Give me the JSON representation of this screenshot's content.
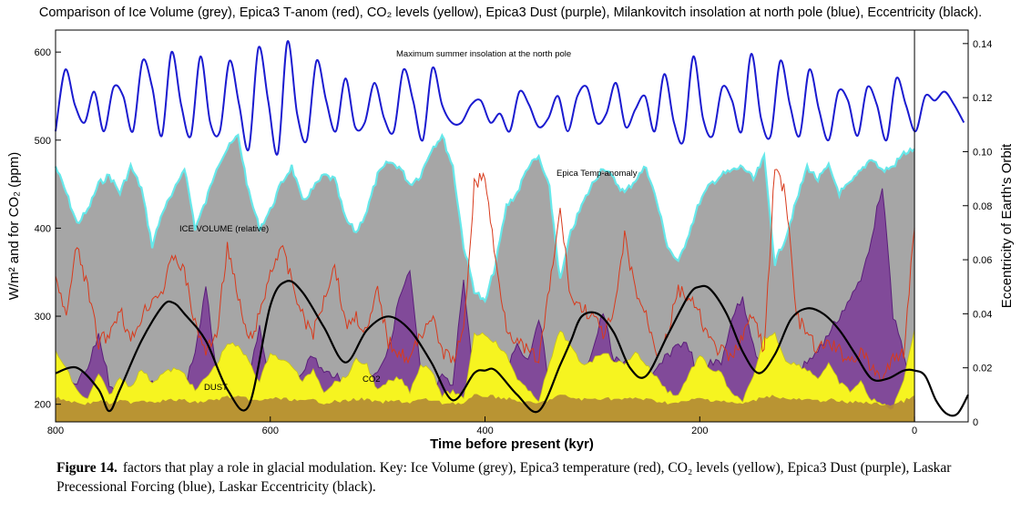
{
  "chart_data": {
    "type": "area",
    "title": "Comparison of Ice Volume (grey), Epica3 T-anom (red), CO₂ levels (yellow), Epica3 Dust (purple), Milankovitch insolation at north pole (blue), Eccentricity (black).",
    "xlabel": "Time before present (kyr)",
    "ylabel_left": "W/m² and for CO₂ (ppm)",
    "ylabel_right": "Eccentricity  of Earth's Orbit",
    "x_ticks": [
      800,
      600,
      400,
      200,
      0
    ],
    "y_left_ticks": [
      200,
      300,
      400,
      500,
      600
    ],
    "y_right_ticks": [
      "0",
      "0.02",
      "0.04",
      "0.06",
      "0.08",
      "0.10",
      "0.12",
      "0.14"
    ],
    "xlim": [
      800,
      -50
    ],
    "ylim_left": [
      180,
      625
    ],
    "ylim_right": [
      0,
      0.145
    ],
    "annotations": {
      "insolation": "Maximum summer insolation at the north pole",
      "temp": "Epica Temp-anomaly",
      "ice": "ICE VOLUME (relative)",
      "dust": "DUST",
      "co2": "CO2"
    },
    "colors": {
      "ice": "#a6a6a6",
      "ice_edge": "#66e8ea",
      "temp": "#d83a1c",
      "co2": "#f6f420",
      "dust": "#7a3a96",
      "dust_line": "#5a1f7a",
      "insolation": "#1b1bd0",
      "eccentricity": "#000000",
      "base": "#b38a35"
    },
    "series": [
      {
        "name": "Maximum summer insolation at the north pole",
        "axis": "left",
        "x": [
          800,
          791,
          782,
          773,
          764,
          755,
          746,
          737,
          728,
          719,
          710,
          701,
          692,
          683,
          674,
          665,
          656,
          647,
          638,
          629,
          620,
          611,
          602,
          593,
          584,
          575,
          566,
          557,
          548,
          539,
          530,
          521,
          512,
          503,
          494,
          485,
          476,
          467,
          458,
          449,
          440,
          431,
          422,
          413,
          404,
          395,
          386,
          377,
          368,
          359,
          350,
          341,
          332,
          323,
          314,
          305,
          296,
          287,
          278,
          269,
          260,
          251,
          242,
          233,
          224,
          215,
          206,
          197,
          188,
          179,
          170,
          161,
          152,
          143,
          134,
          125,
          116,
          107,
          98,
          89,
          80,
          71,
          62,
          53,
          44,
          35,
          26,
          17,
          8,
          -1,
          -10,
          -19,
          -28,
          -37,
          -46
        ],
        "y": [
          510,
          580,
          540,
          520,
          555,
          510,
          560,
          550,
          510,
          590,
          560,
          505,
          600,
          540,
          505,
          595,
          520,
          510,
          590,
          540,
          490,
          605,
          545,
          485,
          612,
          530,
          500,
          590,
          545,
          510,
          570,
          515,
          520,
          565,
          525,
          510,
          580,
          545,
          500,
          582,
          540,
          520,
          520,
          540,
          545,
          520,
          530,
          510,
          555,
          540,
          515,
          525,
          550,
          510,
          550,
          560,
          520,
          530,
          565,
          515,
          535,
          550,
          510,
          575,
          520,
          500,
          595,
          525,
          505,
          560,
          545,
          510,
          598,
          525,
          505,
          590,
          540,
          505,
          580,
          535,
          500,
          555,
          545,
          505,
          560,
          540,
          500,
          570,
          540,
          510,
          550,
          545,
          555,
          540,
          520
        ]
      },
      {
        "name": "Ice Volume",
        "axis": "left",
        "x": [
          800,
          790,
          780,
          770,
          760,
          750,
          740,
          730,
          720,
          710,
          700,
          690,
          680,
          670,
          660,
          650,
          640,
          630,
          620,
          610,
          600,
          590,
          580,
          570,
          560,
          550,
          540,
          530,
          520,
          510,
          500,
          490,
          480,
          470,
          460,
          450,
          440,
          430,
          420,
          410,
          400,
          390,
          380,
          370,
          360,
          350,
          340,
          330,
          320,
          310,
          300,
          290,
          280,
          270,
          260,
          250,
          240,
          230,
          220,
          210,
          200,
          190,
          180,
          170,
          160,
          150,
          140,
          130,
          120,
          110,
          100,
          90,
          80,
          70,
          60,
          50,
          40,
          30,
          20,
          10,
          0
        ],
        "y": [
          470,
          440,
          405,
          420,
          450,
          460,
          440,
          470,
          445,
          380,
          420,
          440,
          470,
          400,
          430,
          470,
          490,
          505,
          440,
          400,
          420,
          450,
          470,
          430,
          445,
          460,
          455,
          410,
          395,
          420,
          460,
          475,
          470,
          450,
          460,
          490,
          505,
          470,
          380,
          330,
          315,
          360,
          425,
          440,
          470,
          480,
          445,
          340,
          395,
          425,
          450,
          470,
          455,
          440,
          455,
          470,
          430,
          380,
          360,
          395,
          430,
          450,
          460,
          465,
          470,
          455,
          480,
          360,
          390,
          430,
          470,
          455,
          470,
          440,
          450,
          465,
          480,
          465,
          470,
          485,
          490
        ]
      },
      {
        "name": "Epica3 T-anom",
        "axis": "left",
        "x": [
          800,
          790,
          780,
          770,
          760,
          750,
          740,
          730,
          720,
          710,
          700,
          690,
          680,
          670,
          660,
          650,
          640,
          630,
          620,
          610,
          600,
          590,
          580,
          570,
          560,
          550,
          540,
          530,
          520,
          510,
          500,
          490,
          480,
          470,
          460,
          450,
          440,
          430,
          420,
          410,
          400,
          390,
          380,
          370,
          360,
          350,
          340,
          330,
          320,
          310,
          300,
          290,
          280,
          270,
          260,
          250,
          240,
          230,
          220,
          210,
          200,
          190,
          180,
          170,
          160,
          150,
          140,
          130,
          120,
          110,
          100,
          90,
          80,
          70,
          60,
          50,
          40,
          30,
          20,
          10,
          0
        ],
        "y": [
          340,
          300,
          380,
          330,
          270,
          280,
          310,
          270,
          300,
          320,
          330,
          370,
          350,
          290,
          260,
          280,
          380,
          320,
          270,
          300,
          350,
          380,
          340,
          300,
          280,
          320,
          360,
          290,
          300,
          280,
          330,
          270,
          260,
          250,
          280,
          300,
          260,
          250,
          280,
          450,
          460,
          360,
          290,
          270,
          260,
          250,
          330,
          420,
          320,
          310,
          300,
          280,
          300,
          390,
          330,
          300,
          260,
          280,
          330,
          320,
          300,
          270,
          260,
          250,
          280,
          300,
          260,
          470,
          440,
          300,
          280,
          260,
          270,
          260,
          250,
          260,
          240,
          230,
          250,
          260,
          400
        ]
      },
      {
        "name": "CO2 levels",
        "axis": "left",
        "x": [
          800,
          790,
          780,
          770,
          760,
          750,
          740,
          730,
          720,
          710,
          700,
          690,
          680,
          670,
          660,
          650,
          640,
          630,
          620,
          610,
          600,
          590,
          580,
          570,
          560,
          550,
          540,
          530,
          520,
          510,
          500,
          490,
          480,
          470,
          460,
          450,
          440,
          430,
          420,
          410,
          400,
          390,
          380,
          370,
          360,
          350,
          340,
          330,
          320,
          310,
          300,
          290,
          280,
          270,
          260,
          250,
          240,
          230,
          220,
          210,
          200,
          190,
          180,
          170,
          160,
          150,
          140,
          130,
          120,
          110,
          100,
          90,
          80,
          70,
          60,
          50,
          40,
          30,
          20,
          10,
          0
        ],
        "y": [
          260,
          240,
          215,
          205,
          235,
          210,
          230,
          220,
          240,
          225,
          235,
          240,
          235,
          215,
          230,
          245,
          270,
          265,
          250,
          225,
          260,
          250,
          245,
          225,
          240,
          215,
          225,
          230,
          250,
          245,
          215,
          225,
          230,
          215,
          245,
          240,
          210,
          215,
          205,
          280,
          280,
          270,
          255,
          230,
          215,
          205,
          245,
          285,
          265,
          245,
          250,
          260,
          250,
          245,
          260,
          245,
          230,
          215,
          210,
          235,
          255,
          240,
          235,
          210,
          205,
          230,
          275,
          280,
          250,
          245,
          240,
          230,
          245,
          225,
          215,
          225,
          205,
          200,
          195,
          230,
          285
        ]
      },
      {
        "name": "Epica3 Dust",
        "axis": "left",
        "x": [
          800,
          790,
          780,
          770,
          760,
          750,
          740,
          730,
          720,
          710,
          700,
          690,
          680,
          670,
          660,
          650,
          640,
          630,
          620,
          610,
          600,
          590,
          580,
          570,
          560,
          550,
          540,
          530,
          520,
          510,
          500,
          490,
          480,
          470,
          460,
          450,
          440,
          430,
          420,
          410,
          400,
          390,
          380,
          370,
          360,
          350,
          340,
          330,
          320,
          310,
          300,
          290,
          280,
          270,
          260,
          250,
          240,
          230,
          220,
          210,
          200,
          190,
          180,
          170,
          160,
          150,
          140,
          130,
          120,
          110,
          100,
          90,
          80,
          70,
          60,
          50,
          40,
          30,
          20,
          10,
          0
        ],
        "y": [
          210,
          215,
          225,
          240,
          280,
          225,
          215,
          215,
          230,
          225,
          220,
          215,
          220,
          260,
          330,
          240,
          220,
          225,
          230,
          285,
          225,
          215,
          220,
          240,
          255,
          235,
          235,
          215,
          225,
          230,
          240,
          260,
          320,
          350,
          235,
          215,
          230,
          220,
          345,
          220,
          215,
          225,
          240,
          270,
          250,
          300,
          220,
          215,
          225,
          235,
          260,
          305,
          250,
          245,
          220,
          215,
          240,
          255,
          270,
          265,
          225,
          250,
          245,
          300,
          320,
          270,
          225,
          215,
          220,
          230,
          250,
          260,
          280,
          300,
          320,
          340,
          390,
          450,
          300,
          260,
          205
        ]
      },
      {
        "name": "Eccentricity",
        "axis": "right",
        "x": [
          800,
          780,
          760,
          750,
          740,
          720,
          700,
          690,
          680,
          660,
          640,
          620,
          600,
          585,
          570,
          550,
          530,
          510,
          490,
          470,
          450,
          430,
          410,
          400,
          390,
          370,
          350,
          330,
          320,
          310,
          295,
          280,
          265,
          250,
          230,
          210,
          200,
          190,
          175,
          160,
          145,
          130,
          115,
          100,
          85,
          70,
          55,
          40,
          25,
          10,
          0,
          -10,
          -20,
          -30,
          -40,
          -50
        ],
        "y": [
          0.018,
          0.02,
          0.012,
          0.004,
          0.012,
          0.03,
          0.043,
          0.044,
          0.04,
          0.03,
          0.012,
          0.006,
          0.043,
          0.052,
          0.048,
          0.035,
          0.022,
          0.034,
          0.039,
          0.034,
          0.022,
          0.008,
          0.018,
          0.019,
          0.019,
          0.01,
          0.004,
          0.021,
          0.03,
          0.039,
          0.04,
          0.033,
          0.02,
          0.017,
          0.032,
          0.047,
          0.05,
          0.049,
          0.04,
          0.026,
          0.018,
          0.025,
          0.038,
          0.042,
          0.04,
          0.034,
          0.025,
          0.016,
          0.016,
          0.019,
          0.019,
          0.017,
          0.008,
          0.003,
          0.003,
          0.01
        ]
      }
    ]
  },
  "caption": {
    "label": "Figure 14.",
    "text": "factors that play a role in glacial modulation. Key: Ice Volume (grey), Epica3 temperature (red), CO₂ levels (yellow), Epica3 Dust (purple), Laskar Precessional Forcing (blue), Laskar Eccentricity (black)."
  }
}
